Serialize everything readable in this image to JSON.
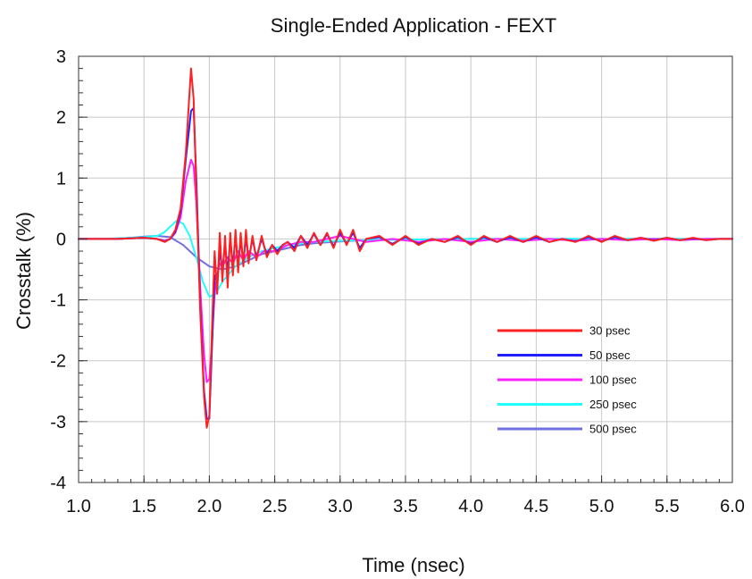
{
  "chart_data": {
    "type": "line",
    "title": "Single-Ended Application - FEXT",
    "xlabel": "Time (nsec)",
    "ylabel": "Crosstalk (%)",
    "xlim": [
      1.0,
      6.0
    ],
    "ylim": [
      -4,
      3
    ],
    "xticks": [
      "1.0",
      "1.5",
      "2.0",
      "2.5",
      "3.0",
      "3.5",
      "4.0",
      "4.5",
      "5.0",
      "5.5",
      "6.0"
    ],
    "yticks": [
      "3",
      "2",
      "1",
      "0",
      "-1",
      "-2",
      "-3",
      "-4"
    ],
    "grid": true,
    "legend_position": "lower-right",
    "series": [
      {
        "name": "30 psec",
        "color": "#ff2020",
        "x": [
          1.0,
          1.3,
          1.5,
          1.6,
          1.66,
          1.7,
          1.74,
          1.78,
          1.82,
          1.86,
          1.88,
          1.9,
          1.93,
          1.96,
          1.98,
          2.0,
          2.02,
          2.04,
          2.06,
          2.08,
          2.1,
          2.12,
          2.14,
          2.16,
          2.18,
          2.2,
          2.22,
          2.24,
          2.26,
          2.28,
          2.3,
          2.33,
          2.36,
          2.4,
          2.44,
          2.48,
          2.52,
          2.56,
          2.6,
          2.65,
          2.7,
          2.75,
          2.8,
          2.85,
          2.9,
          2.95,
          3.0,
          3.05,
          3.1,
          3.15,
          3.2,
          3.3,
          3.4,
          3.5,
          3.6,
          3.7,
          3.8,
          3.9,
          4.0,
          4.1,
          4.2,
          4.3,
          4.4,
          4.5,
          4.6,
          4.7,
          4.8,
          4.9,
          5.0,
          5.1,
          5.2,
          5.3,
          5.4,
          5.5,
          5.6,
          5.7,
          5.8,
          5.9,
          6.0
        ],
        "values": [
          0,
          0,
          0.02,
          0.0,
          -0.05,
          0.0,
          0.15,
          0.5,
          1.4,
          2.8,
          2.3,
          0.8,
          -1.2,
          -2.6,
          -3.1,
          -2.9,
          -1.5,
          -0.2,
          -0.9,
          0.1,
          -0.7,
          0.05,
          -0.8,
          0.1,
          -0.6,
          0.15,
          -0.55,
          0.1,
          -0.45,
          0.15,
          -0.4,
          0.05,
          -0.35,
          0.05,
          -0.3,
          -0.1,
          -0.25,
          -0.1,
          -0.05,
          -0.2,
          0.05,
          -0.15,
          0.1,
          -0.1,
          0.1,
          -0.15,
          0.15,
          -0.1,
          0.15,
          -0.2,
          0.0,
          0.05,
          -0.1,
          0.05,
          -0.1,
          0.0,
          -0.05,
          0.05,
          -0.1,
          0.05,
          -0.05,
          0.05,
          -0.05,
          0.05,
          -0.05,
          0.0,
          -0.05,
          0.05,
          -0.05,
          0.05,
          -0.02,
          0.02,
          -0.03,
          0.02,
          -0.02,
          0.02,
          -0.02,
          0.0,
          0.0
        ]
      },
      {
        "name": "50 psec",
        "color": "#2020ff",
        "x": [
          1.0,
          1.3,
          1.5,
          1.6,
          1.66,
          1.7,
          1.74,
          1.78,
          1.82,
          1.86,
          1.88,
          1.9,
          1.93,
          1.96,
          1.98,
          2.0,
          2.02,
          2.04,
          2.06,
          2.08,
          2.1,
          2.12,
          2.14,
          2.16,
          2.18,
          2.2,
          2.22,
          2.24,
          2.26,
          2.28,
          2.3,
          2.33,
          2.36,
          2.4,
          2.44,
          2.48,
          2.52,
          2.56,
          2.6,
          2.65,
          2.7,
          2.75,
          2.8,
          2.85,
          2.9,
          2.95,
          3.0,
          3.05,
          3.1,
          3.15,
          3.2,
          3.3,
          3.4,
          3.5,
          3.6,
          3.7,
          3.8,
          3.9,
          4.0,
          4.1,
          4.2,
          4.3,
          4.4,
          4.5,
          4.6,
          4.7,
          4.8,
          4.9,
          5.0,
          5.1,
          5.2,
          5.3,
          5.4,
          5.5,
          5.6,
          5.7,
          5.8,
          5.9,
          6.0
        ],
        "values": [
          0,
          0,
          0.02,
          0.0,
          -0.04,
          0.0,
          0.12,
          0.45,
          1.3,
          2.1,
          2.15,
          1.0,
          -1.1,
          -2.5,
          -2.95,
          -2.95,
          -1.8,
          -0.6,
          -0.7,
          -0.2,
          -0.5,
          -0.1,
          -0.55,
          0.0,
          -0.45,
          0.05,
          -0.45,
          0.0,
          -0.4,
          0.05,
          -0.35,
          0.0,
          -0.3,
          0.0,
          -0.25,
          -0.1,
          -0.2,
          -0.1,
          -0.05,
          -0.15,
          0.05,
          -0.1,
          0.08,
          -0.1,
          0.08,
          -0.12,
          0.1,
          -0.08,
          0.1,
          -0.15,
          0.0,
          0.03,
          -0.08,
          0.03,
          -0.08,
          0.0,
          -0.05,
          0.03,
          -0.08,
          0.03,
          -0.05,
          0.03,
          -0.05,
          0.03,
          -0.05,
          0.0,
          -0.04,
          0.03,
          -0.04,
          0.03,
          -0.02,
          0.02,
          -0.02,
          0.02,
          -0.02,
          0.01,
          -0.02,
          0.0,
          0.0
        ]
      },
      {
        "name": "100 psec",
        "color": "#ff20ff",
        "x": [
          1.0,
          1.3,
          1.5,
          1.6,
          1.66,
          1.7,
          1.74,
          1.78,
          1.82,
          1.86,
          1.88,
          1.9,
          1.93,
          1.96,
          1.98,
          2.0,
          2.02,
          2.04,
          2.06,
          2.08,
          2.1,
          2.14,
          2.18,
          2.22,
          2.26,
          2.3,
          2.36,
          2.42,
          2.5,
          2.6,
          2.7,
          2.8,
          2.9,
          3.0,
          3.1,
          3.2,
          3.4,
          3.6,
          3.8,
          4.0,
          4.2,
          4.4,
          4.6,
          4.8,
          5.0,
          5.2,
          5.4,
          5.6,
          5.8,
          6.0
        ],
        "values": [
          0,
          0,
          0.02,
          0.0,
          -0.03,
          0.0,
          0.1,
          0.35,
          0.95,
          1.3,
          1.2,
          0.6,
          -0.8,
          -1.9,
          -2.35,
          -2.3,
          -1.7,
          -0.9,
          -0.6,
          -0.4,
          -0.45,
          -0.3,
          -0.4,
          -0.2,
          -0.35,
          -0.2,
          -0.3,
          -0.2,
          -0.2,
          -0.1,
          -0.05,
          -0.05,
          0.0,
          0.05,
          0.0,
          -0.05,
          0.0,
          -0.05,
          0.0,
          -0.05,
          0.0,
          -0.03,
          0.0,
          -0.03,
          0.0,
          -0.02,
          0.0,
          -0.02,
          0.0,
          0.0
        ]
      },
      {
        "name": "250 psec",
        "color": "#20ffff",
        "x": [
          1.0,
          1.2,
          1.4,
          1.5,
          1.6,
          1.65,
          1.7,
          1.75,
          1.8,
          1.85,
          1.9,
          1.95,
          2.0,
          2.05,
          2.1,
          2.2,
          2.3,
          2.4,
          2.5,
          2.6,
          2.7,
          2.8,
          3.0,
          3.2,
          3.5,
          4.0,
          4.5,
          5.0,
          5.5,
          6.0
        ],
        "values": [
          0,
          0,
          0.02,
          0.03,
          0.05,
          0.1,
          0.2,
          0.3,
          0.25,
          0.05,
          -0.3,
          -0.7,
          -0.95,
          -0.9,
          -0.7,
          -0.45,
          -0.3,
          -0.2,
          -0.15,
          -0.1,
          -0.07,
          -0.05,
          -0.03,
          -0.02,
          -0.01,
          0,
          0,
          0,
          0,
          0
        ]
      },
      {
        "name": "500 psec",
        "color": "#7070e0",
        "x": [
          1.0,
          1.2,
          1.4,
          1.5,
          1.6,
          1.7,
          1.8,
          1.9,
          2.0,
          2.1,
          2.2,
          2.3,
          2.4,
          2.5,
          2.6,
          2.7,
          2.8,
          3.0,
          3.2,
          3.5,
          4.0,
          4.5,
          5.0,
          5.5,
          6.0
        ],
        "values": [
          0,
          0,
          0.02,
          0.04,
          0.05,
          0.03,
          -0.1,
          -0.3,
          -0.45,
          -0.5,
          -0.45,
          -0.35,
          -0.25,
          -0.2,
          -0.15,
          -0.1,
          -0.07,
          -0.04,
          -0.02,
          -0.01,
          0,
          0,
          0,
          0,
          0
        ]
      }
    ]
  }
}
